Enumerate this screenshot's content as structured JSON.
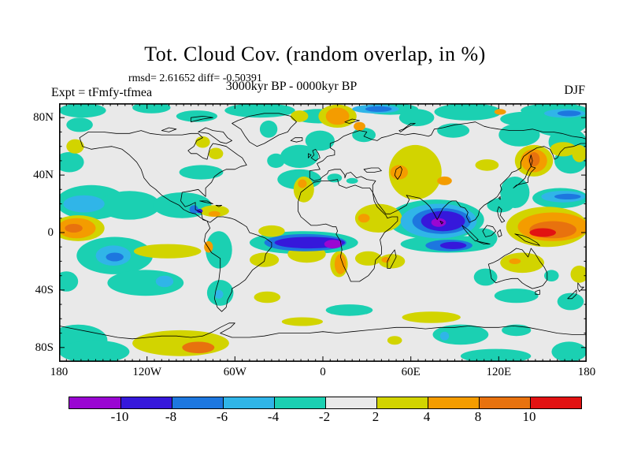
{
  "header": {
    "title": "Tot. Cloud Cov. (random overlap, in %)",
    "stats_line": "rmsd= 2.61652 diff= -0.50391",
    "subtitle": "3000kyr BP - 0000kyr BP",
    "experiment_label": "Expt = tFmfy-tfmea",
    "season_label": "DJF"
  },
  "chart_data": {
    "type": "heatmap",
    "subtype": "filled-contour-world-map",
    "title": "Tot. Cloud Cov. (random overlap, in %)",
    "comparison": "3000kyr BP - 0000kyr BP",
    "season": "DJF",
    "experiment": "tFmfy-tfmea",
    "rmsd": 2.61652,
    "diff": -0.50391,
    "units": "%",
    "projection": "equirectangular",
    "lon_range": [
      -180,
      180
    ],
    "lat_range": [
      -90,
      90
    ],
    "grid": "off",
    "background_color": "#e9e9e9",
    "coast_color": "#000000",
    "x_ticks": {
      "labels": [
        "180",
        "120W",
        "60W",
        "0",
        "60E",
        "120E",
        "180"
      ],
      "lons": [
        -180,
        -120,
        -60,
        0,
        60,
        120,
        180
      ],
      "minor_step_deg": 5
    },
    "y_ticks": {
      "labels": [
        "80N",
        "40N",
        "0",
        "40S",
        "80S"
      ],
      "lats": [
        80,
        40,
        0,
        -40,
        -80
      ],
      "minor_step_deg": 10
    },
    "colorbar": {
      "levels": [
        -10,
        -8,
        -6,
        -4,
        -2,
        2,
        4,
        8,
        10
      ],
      "labels": [
        "-10",
        "-8",
        "-6",
        "-4",
        "-2",
        "2",
        "4",
        "8",
        "10"
      ],
      "colors": [
        "#9a06d2",
        "#3618db",
        "#1d77df",
        "#30b5e8",
        "#1bd0b2",
        "#e9e9e9",
        "#d2d400",
        "#f49c00",
        "#e8720e",
        "#e21212"
      ],
      "legend_position": "bottom"
    },
    "anomaly_regions_format": [
      "lon_center_deg",
      "lat_center_deg",
      "lon_radius_deg",
      "lat_radius_deg",
      "color_bin_index"
    ],
    "anomaly_regions": [
      [
        -164,
        85,
        16,
        5,
        4
      ],
      [
        -117,
        87,
        13,
        4,
        4
      ],
      [
        -43,
        85,
        24,
        5,
        4
      ],
      [
        46,
        86,
        19,
        4,
        4
      ],
      [
        99,
        84,
        23,
        6,
        4
      ],
      [
        158,
        85,
        23,
        5,
        4
      ],
      [
        -86,
        81,
        14,
        4,
        4
      ],
      [
        -3,
        81,
        17,
        5,
        4
      ],
      [
        137,
        79,
        16,
        5,
        4
      ],
      [
        -166,
        75,
        9,
        5,
        4
      ],
      [
        -173,
        49,
        10,
        7,
        4
      ],
      [
        -37,
        72,
        6,
        6,
        4
      ],
      [
        -2,
        64,
        10,
        7,
        4
      ],
      [
        28,
        68,
        8,
        5,
        4
      ],
      [
        64,
        80,
        12,
        6,
        4
      ],
      [
        89,
        71,
        11,
        5,
        4
      ],
      [
        134,
        68,
        14,
        8,
        4
      ],
      [
        167,
        63,
        13,
        10,
        4
      ],
      [
        161,
        79,
        21,
        12,
        4
      ],
      [
        169,
        50,
        11,
        9,
        4
      ],
      [
        -158,
        21,
        24,
        12,
        4
      ],
      [
        -132,
        19,
        21,
        10,
        4
      ],
      [
        -96,
        19,
        20,
        9,
        4
      ],
      [
        -83,
        42,
        15,
        5,
        4
      ],
      [
        -32,
        50,
        6,
        5,
        4
      ],
      [
        -16,
        53,
        13,
        8,
        4
      ],
      [
        -16,
        37,
        15,
        7,
        4
      ],
      [
        -142,
        -16,
        26,
        13,
        4
      ],
      [
        -121,
        -35,
        26,
        9,
        4
      ],
      [
        -71,
        -12,
        9,
        13,
        4
      ],
      [
        -70,
        -42,
        9,
        9,
        4
      ],
      [
        -13,
        -7,
        37,
        8,
        4
      ],
      [
        85,
        -8,
        32,
        6,
        4
      ],
      [
        77,
        9,
        33,
        14,
        4
      ],
      [
        109,
        -4,
        10,
        7,
        4
      ],
      [
        111,
        -31,
        8,
        6,
        4
      ],
      [
        132,
        -44,
        15,
        5,
        4
      ],
      [
        156,
        -30,
        5,
        4,
        4
      ],
      [
        169,
        -48,
        9,
        6,
        4
      ],
      [
        18,
        -54,
        16,
        4,
        4
      ],
      [
        -167,
        -75,
        20,
        11,
        4
      ],
      [
        -156,
        -83,
        24,
        8,
        4
      ],
      [
        -175,
        -34,
        8,
        7,
        4
      ],
      [
        94,
        -71,
        19,
        7,
        4
      ],
      [
        132,
        -68,
        10,
        4,
        4
      ],
      [
        118,
        -86,
        24,
        5,
        4
      ],
      [
        168,
        -83,
        12,
        7,
        4
      ],
      [
        8,
        38,
        5,
        3,
        4
      ],
      [
        20,
        36,
        4,
        2,
        4
      ],
      [
        162,
        24,
        19,
        7,
        4
      ],
      [
        131,
        28,
        10,
        11,
        4
      ],
      [
        121,
        19,
        9,
        5,
        4
      ],
      [
        -74,
        15,
        10,
        4,
        6
      ],
      [
        -167,
        3,
        18,
        9,
        6
      ],
      [
        -106,
        -13,
        23,
        5,
        6
      ],
      [
        -40,
        -19,
        10,
        5,
        6
      ],
      [
        -38,
        -45,
        9,
        4,
        6
      ],
      [
        -35,
        1,
        9,
        4,
        6
      ],
      [
        -11,
        -15,
        13,
        6,
        6
      ],
      [
        11,
        -22,
        6,
        9,
        6
      ],
      [
        31,
        -18,
        9,
        5,
        6
      ],
      [
        47,
        -20,
        9,
        5,
        6
      ],
      [
        38,
        10,
        16,
        10,
        6
      ],
      [
        63,
        42,
        18,
        19,
        6
      ],
      [
        112,
        47,
        8,
        4,
        6
      ],
      [
        144,
        50,
        13,
        11,
        6
      ],
      [
        164,
        58,
        9,
        5,
        6
      ],
      [
        175,
        55,
        5,
        6,
        6
      ],
      [
        153,
        4,
        28,
        14,
        6
      ],
      [
        136,
        -21,
        15,
        7,
        6
      ],
      [
        175,
        -29,
        6,
        6,
        6
      ],
      [
        74,
        -59,
        20,
        4,
        6
      ],
      [
        -97,
        -77,
        33,
        9,
        6
      ],
      [
        -14,
        -62,
        14,
        3,
        6
      ],
      [
        49,
        -75,
        5,
        3,
        6
      ],
      [
        -82,
        63,
        5,
        4,
        6
      ],
      [
        -73,
        55,
        5,
        4,
        6
      ],
      [
        -169,
        60,
        6,
        5,
        6
      ],
      [
        -16,
        81,
        6,
        4,
        6
      ],
      [
        10,
        81,
        13,
        8,
        6
      ],
      [
        -13,
        30,
        7,
        9,
        6
      ],
      [
        -163,
        20,
        14,
        6,
        3
      ],
      [
        -143,
        -16,
        12,
        7,
        3
      ],
      [
        -108,
        -34,
        6,
        4,
        3
      ],
      [
        -71,
        -43,
        3,
        3,
        3
      ],
      [
        79,
        8,
        26,
        12,
        3
      ],
      [
        164,
        25,
        15,
        4,
        3
      ],
      [
        83,
        -72,
        3,
        3,
        3
      ],
      [
        36,
        86,
        16,
        3,
        3
      ],
      [
        165,
        83,
        14,
        3,
        3
      ],
      [
        -74,
        13,
        4,
        2,
        7
      ],
      [
        -168,
        3,
        13,
        7,
        7
      ],
      [
        -78,
        -10,
        3,
        4,
        7
      ],
      [
        12,
        -22,
        4,
        7,
        7
      ],
      [
        43,
        -19,
        3,
        2,
        7
      ],
      [
        28,
        10,
        4,
        3,
        7
      ],
      [
        52,
        42,
        6,
        5,
        7
      ],
      [
        83,
        36,
        5,
        3,
        7
      ],
      [
        144,
        50,
        9,
        8,
        7
      ],
      [
        157,
        4,
        24,
        10,
        7
      ],
      [
        131,
        -20,
        4,
        2,
        7
      ],
      [
        10,
        81,
        8,
        6,
        7
      ],
      [
        121,
        84,
        4,
        2,
        7
      ],
      [
        25,
        74,
        4,
        3,
        7
      ],
      [
        -14,
        34,
        3,
        3,
        7
      ],
      [
        -88,
        16,
        3,
        3,
        2
      ],
      [
        -142,
        -17,
        6,
        3,
        2
      ],
      [
        -12,
        -7,
        28,
        6,
        2
      ],
      [
        86,
        -9,
        16,
        4,
        2
      ],
      [
        81,
        8,
        20,
        9,
        2
      ],
      [
        167,
        25,
        9,
        2,
        2
      ],
      [
        38,
        86,
        9,
        2,
        2
      ],
      [
        168,
        83,
        8,
        2,
        2
      ],
      [
        -170,
        3,
        6,
        3,
        8
      ],
      [
        157,
        2,
        16,
        6,
        8
      ],
      [
        -85,
        -80,
        11,
        4,
        8
      ],
      [
        144,
        51,
        4,
        5,
        8
      ],
      [
        -84,
        15,
        2,
        1.5,
        1
      ],
      [
        -9,
        -7,
        24,
        4,
        1
      ],
      [
        89,
        -9,
        9,
        2.5,
        1
      ],
      [
        82,
        8,
        15,
        7,
        1
      ],
      [
        150,
        0,
        9,
        3,
        9
      ],
      [
        7,
        -8,
        6,
        3,
        0
      ],
      [
        79,
        7,
        5,
        3,
        0
      ]
    ]
  }
}
